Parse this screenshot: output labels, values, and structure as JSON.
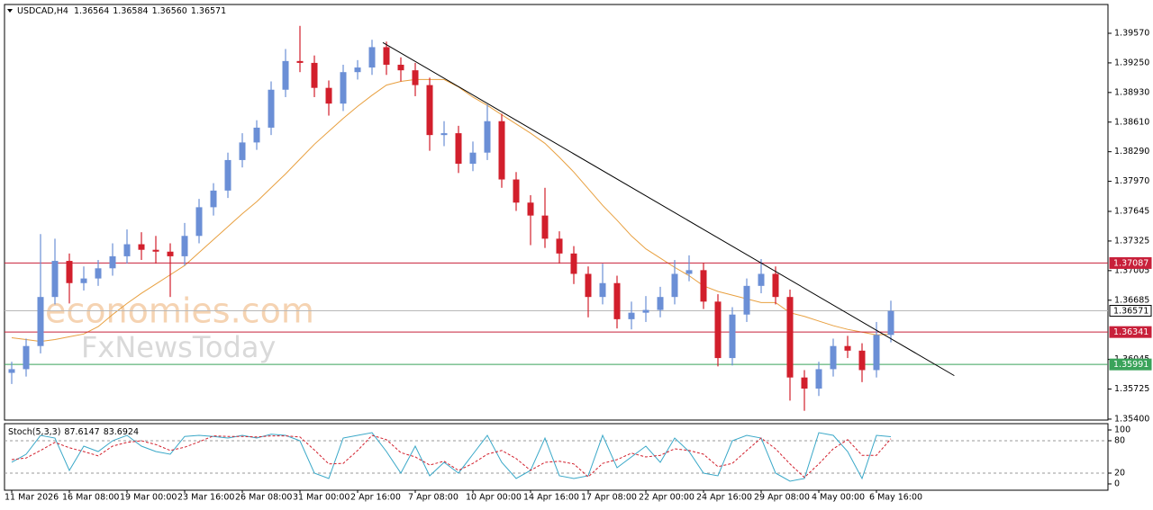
{
  "chart_data": [
    {
      "type": "candlestick",
      "title": "USDCAD,H4",
      "quote": [
        1.36564,
        1.36584,
        {
          "value": 1.3656,
          "label": "1.36560"
        },
        1.36571
      ],
      "categories": [
        "11 Mar 2026",
        null,
        null,
        null,
        "16 Mar 08:00",
        null,
        null,
        null,
        "19 Mar 00:00",
        null,
        null,
        null,
        "23 Mar 16:00",
        null,
        null,
        null,
        "26 Mar 08:00",
        null,
        null,
        null,
        "31 Mar 00:00",
        null,
        null,
        null,
        "2 Apr 16:00",
        null,
        null,
        null,
        "7 Apr 08:00",
        null,
        null,
        null,
        "10 Apr 00:00",
        null,
        null,
        null,
        "14 Apr 16:00",
        null,
        null,
        null,
        "17 Apr 08:00",
        null,
        null,
        null,
        "22 Apr 00:00",
        null,
        null,
        null,
        "24 Apr 16:00",
        null,
        null,
        null,
        "29 Apr 08:00",
        null,
        null,
        null,
        "4 May 00:00",
        null,
        null,
        null,
        "6 May 16:00",
        null
      ],
      "open": [
        1.359,
        1.3594,
        1.3619,
        1.3672,
        1.3711,
        1.3687,
        1.3692,
        1.3703,
        1.3716,
        1.3729,
        1.3723,
        1.3721,
        1.3716,
        1.3738,
        1.3769,
        1.3787,
        1.382,
        1.3839,
        1.3855,
        1.3896,
        1.3927,
        1.3925,
        1.3898,
        1.3881,
        1.3915,
        1.392,
        1.3942,
        1.3923,
        1.3917,
        1.3901,
        1.3847,
        1.3849,
        1.3816,
        1.3828,
        1.3862,
        1.3799,
        1.3774,
        1.376,
        1.3735,
        1.3719,
        1.3697,
        1.3672,
        1.3687,
        1.3648,
        1.3655,
        1.3658,
        1.3672,
        1.3697,
        1.3701,
        1.3667,
        1.3606,
        1.3653,
        1.3684,
        1.3697,
        1.3672,
        1.3585,
        1.3573,
        1.3594,
        1.3619,
        1.3614,
        1.3593,
        1.3631
      ],
      "high": [
        1.3602,
        1.3627,
        1.374,
        1.3735,
        1.3719,
        1.3705,
        1.3712,
        1.373,
        1.3745,
        1.3742,
        1.3738,
        1.373,
        1.3752,
        1.3778,
        1.3795,
        1.3828,
        1.3849,
        1.3863,
        1.3905,
        1.394,
        1.3965,
        1.3933,
        1.3906,
        1.3923,
        1.3928,
        1.395,
        1.3948,
        1.3931,
        1.3925,
        1.3909,
        1.3862,
        1.3857,
        1.384,
        1.388,
        1.387,
        1.3807,
        1.3782,
        1.379,
        1.3743,
        1.3727,
        1.3705,
        1.3708,
        1.3695,
        1.3667,
        1.3673,
        1.3683,
        1.3712,
        1.3717,
        1.3709,
        1.3675,
        1.3661,
        1.3692,
        1.3713,
        1.3705,
        1.368,
        1.3593,
        1.3602,
        1.3627,
        1.363,
        1.3622,
        1.3645,
        1.3668
      ],
      "low": [
        1.3578,
        1.3586,
        1.3611,
        1.3664,
        1.3665,
        1.3679,
        1.3684,
        1.3695,
        1.3708,
        1.3712,
        1.3708,
        1.3672,
        1.3706,
        1.373,
        1.376,
        1.3779,
        1.3812,
        1.3831,
        1.3847,
        1.3888,
        1.3915,
        1.3888,
        1.3868,
        1.3873,
        1.3907,
        1.3912,
        1.3912,
        1.3905,
        1.3889,
        1.383,
        1.3835,
        1.3806,
        1.3808,
        1.382,
        1.379,
        1.3765,
        1.3728,
        1.3725,
        1.3708,
        1.3686,
        1.365,
        1.3664,
        1.3638,
        1.3637,
        1.3645,
        1.365,
        1.3664,
        1.3689,
        1.3659,
        1.3597,
        1.3598,
        1.3645,
        1.3676,
        1.3664,
        1.356,
        1.3549,
        1.3565,
        1.3586,
        1.3606,
        1.358,
        1.3585,
        1.3623
      ],
      "close": [
        1.3594,
        1.3619,
        1.3672,
        1.3711,
        1.3687,
        1.3692,
        1.3703,
        1.3716,
        1.3729,
        1.3723,
        1.3721,
        1.3716,
        1.3738,
        1.3769,
        1.3787,
        1.382,
        1.3839,
        1.3855,
        1.3896,
        1.3927,
        1.3925,
        1.3898,
        1.3881,
        1.3915,
        1.392,
        1.3942,
        1.3923,
        1.3917,
        1.3901,
        1.3847,
        1.3849,
        1.3816,
        1.3828,
        1.3862,
        1.3799,
        1.3774,
        1.376,
        1.3735,
        1.3719,
        1.3697,
        1.3672,
        1.3687,
        1.3648,
        1.3655,
        1.3658,
        1.3672,
        1.3697,
        1.3701,
        1.3667,
        1.3606,
        1.3653,
        1.3684,
        1.3697,
        1.3672,
        1.3585,
        1.3573,
        1.3594,
        1.3619,
        1.3614,
        1.3593,
        1.3631,
        1.3657
      ],
      "up_color": "#6b8fd6",
      "down_color": "#d21f2c",
      "ma": {
        "color": "#e8a040",
        "values": [
          1.3628,
          1.3626,
          1.3624,
          1.3626,
          1.3629,
          1.3632,
          1.364,
          1.3653,
          1.3665,
          1.3676,
          1.3686,
          1.3696,
          1.3706,
          1.372,
          1.3734,
          1.3748,
          1.3762,
          1.3775,
          1.379,
          1.3805,
          1.3821,
          1.3837,
          1.3851,
          1.3865,
          1.3878,
          1.389,
          1.3901,
          1.3905,
          1.3907,
          1.3907,
          1.3907,
          1.3899,
          1.3888,
          1.3879,
          1.3869,
          1.3859,
          1.3849,
          1.3838,
          1.3823,
          1.3807,
          1.3789,
          1.3771,
          1.3755,
          1.3738,
          1.3724,
          1.3714,
          1.3704,
          1.3695,
          1.3684,
          1.3678,
          1.3674,
          1.367,
          1.3666,
          1.3666,
          1.3655,
          1.3651,
          1.3646,
          1.3641,
          1.3637,
          1.3634,
          1.3631,
          1.3632
        ]
      },
      "trendline": {
        "color": "#000000",
        "x": [
          25.75,
          65.4
        ],
        "values": [
          1.3947,
          1.3587
        ]
      },
      "levels": [
        {
          "value": 1.37087,
          "label": "1.37087",
          "color": "#c8203a"
        },
        {
          "value": 1.36341,
          "label": "1.36341",
          "color": "#c8203a"
        },
        {
          "value": 1.35991,
          "label": "1.35991",
          "color": "#3aa35a"
        },
        {
          "value": 1.36571,
          "label": "1.36571",
          "color": "#b8b8b8"
        }
      ],
      "ylim": [
        1.3539,
        1.39881
      ],
      "yticks": [
        {
          "value": 1.3957,
          "label": "1.39570"
        },
        {
          "value": 1.3925,
          "label": "1.39250"
        },
        {
          "value": 1.3893,
          "label": "1.38930"
        },
        {
          "value": 1.3861,
          "label": "1.38610"
        },
        {
          "value": 1.3829,
          "label": "1.38290"
        },
        {
          "value": 1.3797,
          "label": "1.37970"
        },
        1.37645,
        {
          "value": 1.37325,
          "label": "1.37325"
        },
        {
          "value": 1.37005,
          "label": "1.37005"
        },
        {
          "value": 1.36685,
          "label": "1.36685"
        },
        {
          "value": 1.36045,
          "label": "1.36045"
        },
        {
          "value": 1.35725,
          "label": "1.35725"
        },
        {
          "value": 1.354,
          "label": "1.35400"
        }
      ],
      "watermarks": [
        "economies.com",
        "FxNewsToday"
      ]
    },
    {
      "type": "line",
      "title": "Stoch(5,3,3)",
      "series": [
        {
          "color": "#3aa8c8",
          "values": [
            40,
            55,
            90,
            85,
            25,
            70,
            60,
            80,
            90,
            70,
            60,
            55,
            88,
            90,
            88,
            85,
            90,
            85,
            92,
            90,
            80,
            20,
            10,
            85,
            90,
            95,
            60,
            20,
            70,
            15,
            40,
            20,
            55,
            90,
            40,
            10,
            25,
            85,
            15,
            10,
            15,
            90,
            30,
            50,
            70,
            40,
            85,
            60,
            20,
            15,
            80,
            90,
            85,
            20,
            5,
            10,
            95,
            90,
            60,
            10,
            90,
            87.6147
          ]
        },
        {
          "color": "#d21f2c",
          "dashed": true,
          "values": [
            45,
            48,
            62,
            77,
            67,
            60,
            52,
            70,
            77,
            80,
            73,
            62,
            68,
            78,
            89,
            88,
            88,
            87,
            89,
            89,
            87,
            63,
            37,
            38,
            62,
            90,
            82,
            58,
            50,
            35,
            42,
            25,
            38,
            55,
            62,
            47,
            25,
            40,
            42,
            37,
            13,
            38,
            45,
            57,
            50,
            53,
            65,
            62,
            55,
            32,
            38,
            62,
            85,
            65,
            37,
            12,
            37,
            65,
            82,
            53,
            53,
            83.6924
          ]
        }
      ],
      "levels": [
        80,
        20
      ],
      "ylim": [
        -11.7,
        111.7
      ],
      "yticks": [
        100,
        80,
        20,
        0
      ]
    }
  ]
}
